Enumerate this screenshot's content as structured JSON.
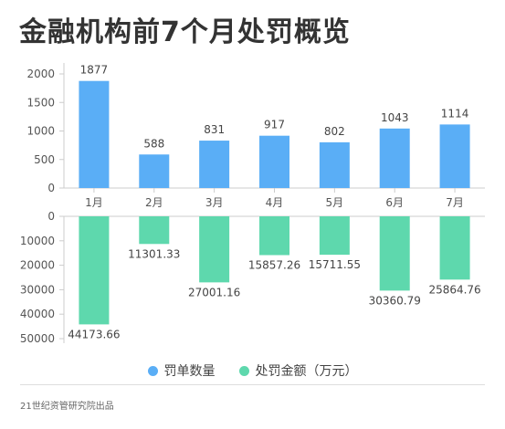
{
  "title": "金融机构前7个月处罚概览",
  "source": "21世纪资管研究院出品",
  "colors": {
    "count": "#5aaef6",
    "amount": "#5ed8ad",
    "axis_text": "#555555",
    "label_text": "#444444",
    "grid": "#cccccc"
  },
  "chart_data": [
    {
      "type": "bar",
      "categories": [
        "1月",
        "2月",
        "3月",
        "4月",
        "5月",
        "6月",
        "7月"
      ],
      "series": [
        {
          "name": "罚单数量",
          "values": [
            1877,
            588,
            831,
            917,
            802,
            1043,
            1114
          ]
        }
      ],
      "ylim": [
        0,
        2000
      ],
      "yticks": [
        0,
        500,
        1000,
        1500,
        2000
      ],
      "xlabel": "",
      "ylabel": ""
    },
    {
      "type": "bar",
      "categories": [
        "1月",
        "2月",
        "3月",
        "4月",
        "5月",
        "6月",
        "7月"
      ],
      "series": [
        {
          "name": "处罚金额（万元）",
          "values": [
            44173.66,
            11301.33,
            27001.16,
            15857.26,
            15711.55,
            30360.79,
            25864.76
          ]
        }
      ],
      "ylim": [
        0,
        50000
      ],
      "yticks": [
        0,
        10000,
        20000,
        30000,
        40000,
        50000
      ],
      "inverted": true,
      "xlabel": "",
      "ylabel": ""
    }
  ],
  "legend": [
    {
      "label": "罚单数量",
      "color": "#5aaef6"
    },
    {
      "label": "处罚金额（万元）",
      "color": "#5ed8ad"
    }
  ]
}
